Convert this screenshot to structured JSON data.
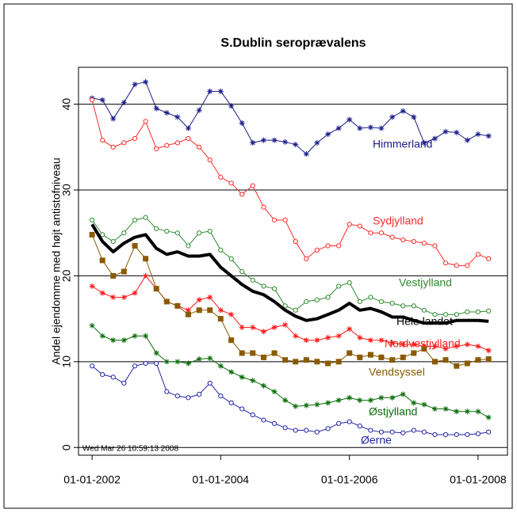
{
  "chart_data": {
    "type": "line",
    "title": "S.Dublin seroprævalens",
    "y_label": "Andel ejendomme med højt antistofniveau",
    "timestamp": "Wed Mar 26 10:59:13 2008",
    "x": [
      "2002-01-01",
      "2002-03-01",
      "2002-05-01",
      "2002-07-01",
      "2002-09-01",
      "2002-11-01",
      "2003-01-01",
      "2003-03-01",
      "2003-05-01",
      "2003-07-01",
      "2003-09-01",
      "2003-11-01",
      "2004-01-01",
      "2004-03-01",
      "2004-05-01",
      "2004-07-01",
      "2004-09-01",
      "2004-11-01",
      "2005-01-01",
      "2005-03-01",
      "2005-05-01",
      "2005-07-01",
      "2005-09-01",
      "2005-11-01",
      "2006-01-01",
      "2006-03-01",
      "2006-05-01",
      "2006-07-01",
      "2006-09-01",
      "2006-11-01",
      "2007-01-01",
      "2007-03-01",
      "2007-05-01",
      "2007-07-01",
      "2007-09-01",
      "2007-11-01",
      "2008-01-01",
      "2008-03-01"
    ],
    "xlim": [
      "2001-10-16",
      "2008-06-16"
    ],
    "xticks": [
      {
        "value": "2002-01-01",
        "label": "01-01-2002"
      },
      {
        "value": "2004-01-01",
        "label": "01-01-2004"
      },
      {
        "value": "2006-01-01",
        "label": "01-01-2006"
      },
      {
        "value": "2008-01-01",
        "label": "01-01-2008"
      }
    ],
    "ylim": [
      -0.9,
      44.3
    ],
    "yticks": [
      0,
      10,
      20,
      30,
      40
    ],
    "grid": true,
    "series": [
      {
        "name": "Himmerland",
        "color": "#1c1c8a",
        "marker": "asterisk",
        "linewidth": 1,
        "values": [
          40.7,
          40.5,
          38.3,
          40.2,
          42.3,
          42.6,
          39.5,
          39,
          38.5,
          37.2,
          39.3,
          41.5,
          41.5,
          39.8,
          37.8,
          35.5,
          35.8,
          35.8,
          35.6,
          35.3,
          34.2,
          35.5,
          36.5,
          37.2,
          38.2,
          37.2,
          37.3,
          37.2,
          38.5,
          39.2,
          38.5,
          35.5,
          36,
          36.8,
          36.7,
          35.8,
          36.5,
          36.3
        ]
      },
      {
        "name": "Sydjylland",
        "color": "#ff2a2a",
        "marker": "circle",
        "linewidth": 1,
        "values": [
          40.5,
          35.8,
          35,
          35.5,
          36,
          38,
          34.8,
          35.2,
          35.5,
          36,
          35,
          33.5,
          31.5,
          30.8,
          29.5,
          30.5,
          28,
          26.5,
          26.5,
          24,
          22,
          23,
          23.5,
          23.5,
          26,
          25.8,
          25,
          25,
          24.5,
          24.2,
          24,
          23.8,
          23.5,
          21.5,
          21.2,
          21.2,
          22.5,
          22
        ]
      },
      {
        "name": "Vestjylland",
        "color": "#2e8b2e",
        "marker": "circle",
        "linewidth": 1,
        "values": [
          26.5,
          24.8,
          24,
          25,
          26.5,
          26.8,
          25.5,
          25.2,
          25,
          23.5,
          25,
          25.2,
          23,
          22,
          20.5,
          19.5,
          18.8,
          18.5,
          16.5,
          16,
          17,
          17.2,
          17.5,
          18.8,
          19.2,
          17,
          17.5,
          17,
          16.8,
          16.5,
          16.5,
          16,
          15.5,
          15.5,
          15.5,
          15.8,
          15.8,
          15.9
        ]
      },
      {
        "name": "Hele landet",
        "color": "#000000",
        "marker": "none",
        "linewidth": 4,
        "values": [
          26,
          24,
          22.8,
          23.8,
          24.5,
          24.8,
          23.2,
          22.5,
          22.8,
          22.3,
          22.3,
          22.5,
          21,
          20,
          19,
          18.2,
          17.8,
          17,
          16,
          15.3,
          14.8,
          15,
          15.5,
          16,
          16.8,
          16,
          16.2,
          15.8,
          15.2,
          15.2,
          14.8,
          14.5,
          14.5,
          14.5,
          14.8,
          14.8,
          14.8,
          14.7
        ]
      },
      {
        "name": "Nordvestjylland",
        "color": "#ff1a1a",
        "marker": "asterisk",
        "linewidth": 1,
        "values": [
          18.8,
          18,
          17.5,
          17.5,
          18,
          20,
          18.5,
          17,
          16.5,
          16,
          17.2,
          17.5,
          16,
          15.5,
          14,
          14,
          13.5,
          14,
          14.3,
          13,
          12.5,
          12.5,
          12.8,
          13,
          13.8,
          12.8,
          12.5,
          12.5,
          12.2,
          12,
          12,
          11.8,
          11.8,
          11.5,
          11.8,
          12,
          11.8,
          11.3
        ]
      },
      {
        "name": "Vendsyssel",
        "color": "#8b5a00",
        "marker": "square",
        "linewidth": 1,
        "values": [
          24.8,
          21.8,
          20,
          20.5,
          23.5,
          22,
          18.5,
          17,
          16.5,
          15.5,
          16,
          16,
          15,
          12.5,
          11,
          11,
          10.5,
          11,
          10.2,
          10,
          10.2,
          10,
          9.8,
          10,
          11,
          10.5,
          10.8,
          10.5,
          10.2,
          10.5,
          11,
          11.5,
          10,
          10.2,
          9.5,
          9.8,
          10.2,
          10.3
        ]
      },
      {
        "name": "Østjylland",
        "color": "#0a6e0a",
        "marker": "asterisk",
        "linewidth": 1,
        "values": [
          14.2,
          13,
          12.5,
          12.5,
          13,
          13,
          11,
          10,
          10,
          9.8,
          10.3,
          10.4,
          9.5,
          8.8,
          8.2,
          7.8,
          7.2,
          6.5,
          5.5,
          4.8,
          4.9,
          5,
          5.2,
          5.5,
          5.8,
          5.5,
          5.5,
          5.8,
          5.8,
          6.2,
          5.2,
          5,
          4.5,
          4.5,
          4.2,
          4.2,
          4.2,
          3.5
        ]
      },
      {
        "name": "Øerne",
        "color": "#2424a8",
        "marker": "circle",
        "linewidth": 1,
        "values": [
          9.5,
          8.5,
          8.2,
          7.5,
          9.5,
          9.8,
          9.8,
          6.5,
          6,
          5.8,
          6.2,
          7.5,
          6,
          5.2,
          4.5,
          3.8,
          3.2,
          2.8,
          2.3,
          2,
          2,
          1.8,
          2.2,
          2.8,
          3,
          2.5,
          2,
          1.8,
          1.8,
          1.7,
          2,
          1.8,
          1.5,
          1.5,
          1.5,
          1.5,
          1.6,
          1.8
        ]
      }
    ]
  }
}
